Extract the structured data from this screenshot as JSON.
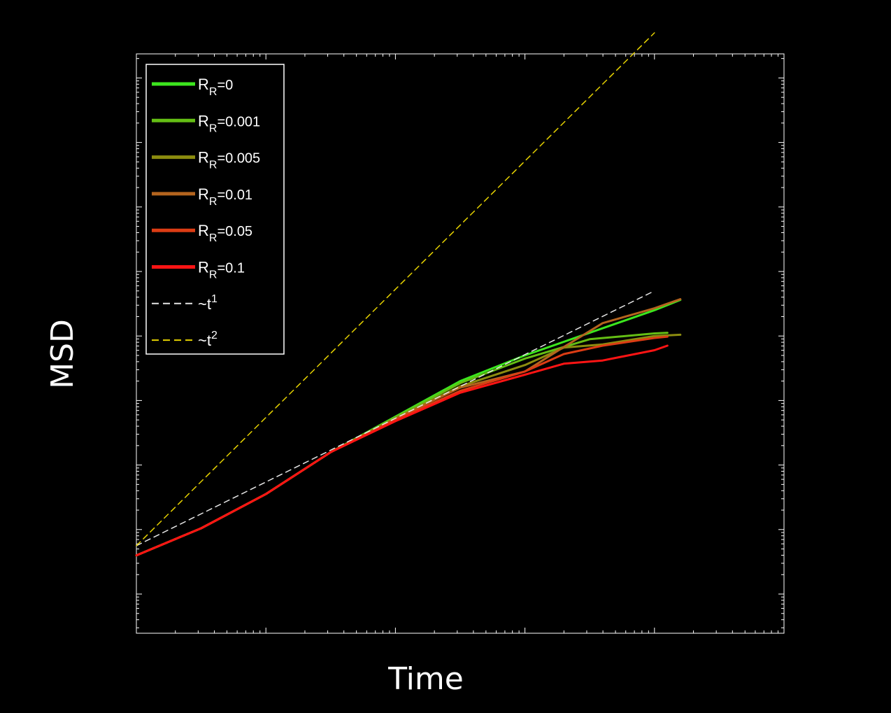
{
  "chart_data": {
    "type": "line",
    "title": "",
    "xlabel": "Time",
    "ylabel": "MSD",
    "x_scale": "log",
    "y_scale": "log",
    "xlim_decades": [
      0,
      5
    ],
    "ylim_decades": [
      0,
      9
    ],
    "grid": false,
    "legend_position": "top-left",
    "legend": [
      {
        "name": "R",
        "sub": "R",
        "value": "=0",
        "color": "#3ce61e",
        "style": "solid"
      },
      {
        "name": "R",
        "sub": "R",
        "value": "=0.001",
        "color": "#64be14",
        "style": "solid"
      },
      {
        "name": "R",
        "sub": "R",
        "value": "=0.005",
        "color": "#8c8c0f",
        "style": "solid"
      },
      {
        "name": "R",
        "sub": "R",
        "value": "=0.01",
        "color": "#b4641e",
        "style": "solid"
      },
      {
        "name": "R",
        "sub": "R",
        "value": "=0.05",
        "color": "#dc3c14",
        "style": "solid"
      },
      {
        "name": "R",
        "sub": "R",
        "value": "=0.1",
        "color": "#ff1414",
        "style": "solid"
      },
      {
        "name": "~t",
        "sup": "1",
        "color": "#e6e6e6",
        "style": "dashed"
      },
      {
        "name": "~t",
        "sup": "2",
        "color": "#e6d200",
        "style": "dashed"
      }
    ],
    "series": [
      {
        "name": "R_R=0",
        "color": "#3ce61e",
        "points": [
          [
            0,
            0.6
          ],
          [
            0.5,
            1.02
          ],
          [
            1,
            1.55
          ],
          [
            1.5,
            2.2
          ],
          [
            2,
            2.75
          ],
          [
            2.5,
            3.3
          ],
          [
            3,
            3.7
          ],
          [
            3.5,
            4.05
          ],
          [
            4,
            4.4
          ],
          [
            4.2,
            4.56
          ]
        ]
      },
      {
        "name": "R_R=0.001",
        "color": "#64be14",
        "points": [
          [
            0,
            0.6
          ],
          [
            0.5,
            1.02
          ],
          [
            1,
            1.55
          ],
          [
            1.5,
            2.2
          ],
          [
            2,
            2.74
          ],
          [
            2.5,
            3.27
          ],
          [
            3,
            3.65
          ],
          [
            3.5,
            3.95
          ],
          [
            4,
            4.04
          ],
          [
            4.1,
            4.05
          ]
        ]
      },
      {
        "name": "R_R=0.005",
        "color": "#8c8c0f",
        "points": [
          [
            0,
            0.6
          ],
          [
            0.5,
            1.02
          ],
          [
            1,
            1.55
          ],
          [
            1.5,
            2.2
          ],
          [
            2,
            2.72
          ],
          [
            2.5,
            3.22
          ],
          [
            3,
            3.55
          ],
          [
            3.3,
            3.82
          ],
          [
            3.6,
            3.87
          ],
          [
            4,
            4.0
          ],
          [
            4.2,
            4.02
          ]
        ]
      },
      {
        "name": "R_R=0.01",
        "color": "#b4641e",
        "points": [
          [
            0,
            0.6
          ],
          [
            0.5,
            1.02
          ],
          [
            1,
            1.55
          ],
          [
            1.5,
            2.2
          ],
          [
            2,
            2.72
          ],
          [
            2.5,
            3.2
          ],
          [
            3,
            3.45
          ],
          [
            3.3,
            3.83
          ],
          [
            3.6,
            4.2
          ],
          [
            4,
            4.43
          ],
          [
            4.2,
            4.57
          ]
        ]
      },
      {
        "name": "R_R=0.05",
        "color": "#dc3c14",
        "points": [
          [
            0,
            0.6
          ],
          [
            0.5,
            1.02
          ],
          [
            1,
            1.55
          ],
          [
            1.5,
            2.2
          ],
          [
            2,
            2.7
          ],
          [
            2.5,
            3.15
          ],
          [
            3,
            3.45
          ],
          [
            3.3,
            3.72
          ],
          [
            3.6,
            3.85
          ],
          [
            4,
            3.97
          ],
          [
            4.1,
            3.99
          ]
        ]
      },
      {
        "name": "R_R=0.1",
        "color": "#ff1414",
        "points": [
          [
            0,
            0.6
          ],
          [
            0.5,
            1.02
          ],
          [
            1,
            1.55
          ],
          [
            1.5,
            2.2
          ],
          [
            2,
            2.68
          ],
          [
            2.5,
            3.12
          ],
          [
            3,
            3.4
          ],
          [
            3.3,
            3.57
          ],
          [
            3.6,
            3.62
          ],
          [
            4,
            3.78
          ],
          [
            4.1,
            3.85
          ]
        ]
      },
      {
        "name": "~t^1",
        "color": "#e6e6e6",
        "dashed": true,
        "points": [
          [
            0,
            0.75
          ],
          [
            4,
            4.7
          ]
        ]
      },
      {
        "name": "~t^2",
        "color": "#e6d200",
        "dashed": true,
        "points": [
          [
            0,
            0.75
          ],
          [
            4,
            8.7
          ]
        ]
      }
    ]
  }
}
